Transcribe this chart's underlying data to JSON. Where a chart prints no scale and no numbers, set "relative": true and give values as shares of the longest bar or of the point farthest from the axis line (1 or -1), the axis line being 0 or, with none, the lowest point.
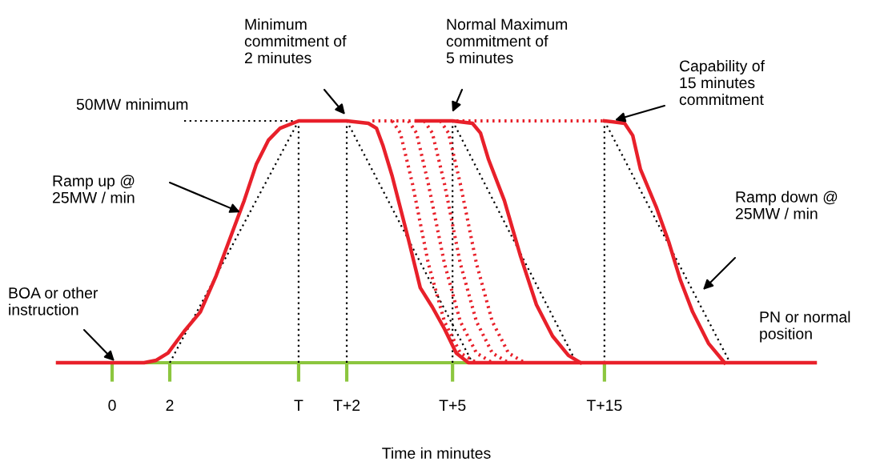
{
  "chart_data": {
    "type": "line",
    "relative": true,
    "xlabel": "Time in minutes",
    "xlim": [
      -1.89,
      24.39
    ],
    "xticks": [
      0,
      2,
      {
        "value": 6.47,
        "label": "T"
      },
      {
        "value": 8.14,
        "label": "T+2"
      },
      {
        "value": 11.81,
        "label": "T+5"
      },
      {
        "value": 17.08,
        "label": "T+15"
      }
    ],
    "tick_labels": "x",
    "grid": false,
    "legend": false,
    "marker": "none",
    "series": [
      {
        "color": "#000000",
        "line_style": "dotted",
        "x": [
          2.5,
          6.47
        ],
        "values": [
          1,
          1
        ]
      },
      {
        "color": "#000000",
        "line_style": "dotted",
        "x": [
          2.0,
          6.47
        ],
        "values": [
          0,
          1
        ]
      },
      {
        "color": "#000000",
        "line_style": "dotted",
        "x": [
          6.47,
          6.47
        ],
        "values": [
          0,
          1
        ]
      },
      {
        "color": "#000000",
        "line_style": "dotted",
        "x": [
          8.14,
          8.14
        ],
        "values": [
          0,
          1
        ]
      },
      {
        "color": "#000000",
        "line_style": "dotted",
        "x": [
          11.81,
          11.81
        ],
        "values": [
          0,
          1
        ]
      },
      {
        "color": "#000000",
        "line_style": "dotted",
        "x": [
          17.08,
          17.08
        ],
        "values": [
          0,
          1
        ]
      },
      {
        "color": "#000000",
        "line_style": "dotted",
        "x": [
          8.14,
          12.5
        ],
        "values": [
          1,
          0
        ]
      },
      {
        "color": "#000000",
        "line_style": "dotted",
        "x": [
          11.81,
          16.11
        ],
        "values": [
          1,
          0
        ]
      },
      {
        "color": "#000000",
        "line_style": "dotted",
        "x": [
          17.08,
          21.44
        ],
        "values": [
          1,
          0
        ]
      },
      {
        "color": "#e8202a",
        "line_style": "dotted",
        "x": [
          9.03,
          17.08
        ],
        "values": [
          1,
          1
        ]
      },
      {
        "color": "#e8202a",
        "line_style": "dotted",
        "x": [
          9.72,
          10.0,
          10.42,
          10.97,
          11.53,
          12.08,
          12.64
        ],
        "values": [
          1,
          0.95,
          0.74,
          0.41,
          0.17,
          0.04,
          0
        ]
      },
      {
        "color": "#e8202a",
        "line_style": "dotted",
        "x": [
          10.28,
          10.56,
          10.97,
          11.53,
          12.08,
          12.64,
          13.19
        ],
        "values": [
          1,
          0.95,
          0.74,
          0.41,
          0.17,
          0.04,
          0
        ]
      },
      {
        "color": "#e8202a",
        "line_style": "dotted",
        "x": [
          10.83,
          11.11,
          11.53,
          12.08,
          12.64,
          13.19,
          13.75
        ],
        "values": [
          1,
          0.95,
          0.74,
          0.41,
          0.17,
          0.04,
          0
        ]
      },
      {
        "color": "#e8202a",
        "line_style": "dotted",
        "x": [
          11.39,
          11.67,
          12.08,
          12.64,
          13.19,
          13.75,
          14.31
        ],
        "values": [
          1,
          0.95,
          0.74,
          0.41,
          0.17,
          0.04,
          0
        ]
      },
      {
        "color": "#e8202a",
        "line_style": "solid",
        "x": [
          -1.89,
          1.11,
          1.53,
          1.94,
          2.5,
          3.06,
          3.61,
          4.17,
          4.58,
          5.0,
          5.42,
          5.83,
          6.47,
          8.14,
          8.89,
          9.17,
          9.39,
          9.72,
          10.28,
          10.69,
          11.11,
          11.53,
          11.94,
          12.36,
          24.39
        ],
        "values": [
          0,
          0,
          0.01,
          0.04,
          0.13,
          0.21,
          0.36,
          0.54,
          0.67,
          0.82,
          0.92,
          0.97,
          1,
          1,
          0.99,
          0.97,
          0.9,
          0.77,
          0.51,
          0.31,
          0.23,
          0.14,
          0.04,
          0,
          0
        ]
      },
      {
        "color": "#e8202a",
        "line_style": "solid",
        "x": [
          10.56,
          11.81,
          12.5,
          12.78,
          13.06,
          13.61,
          14.17,
          14.72,
          15.28,
          15.83,
          16.25
        ],
        "values": [
          1,
          1,
          0.99,
          0.95,
          0.84,
          0.67,
          0.44,
          0.24,
          0.11,
          0.03,
          0
        ]
      },
      {
        "color": "#e8202a",
        "line_style": "solid",
        "x": [
          17.08,
          17.78,
          18.06,
          18.33,
          18.89,
          19.31,
          19.72,
          20.14,
          20.69,
          21.25
        ],
        "values": [
          1,
          0.99,
          0.94,
          0.8,
          0.64,
          0.5,
          0.34,
          0.21,
          0.08,
          0
        ]
      }
    ],
    "annotations": [
      "50MW minimum",
      "Ramp up @\n25MW / min",
      "BOA or other\ninstruction",
      "Minimum\ncommitment of\n2 minutes",
      "Normal Maximum\ncommitment of\n5 minutes",
      "Capability of\n15 minutes\ncommitment",
      "Ramp down @\n25MW / min",
      "PN or normal\nposition"
    ]
  }
}
